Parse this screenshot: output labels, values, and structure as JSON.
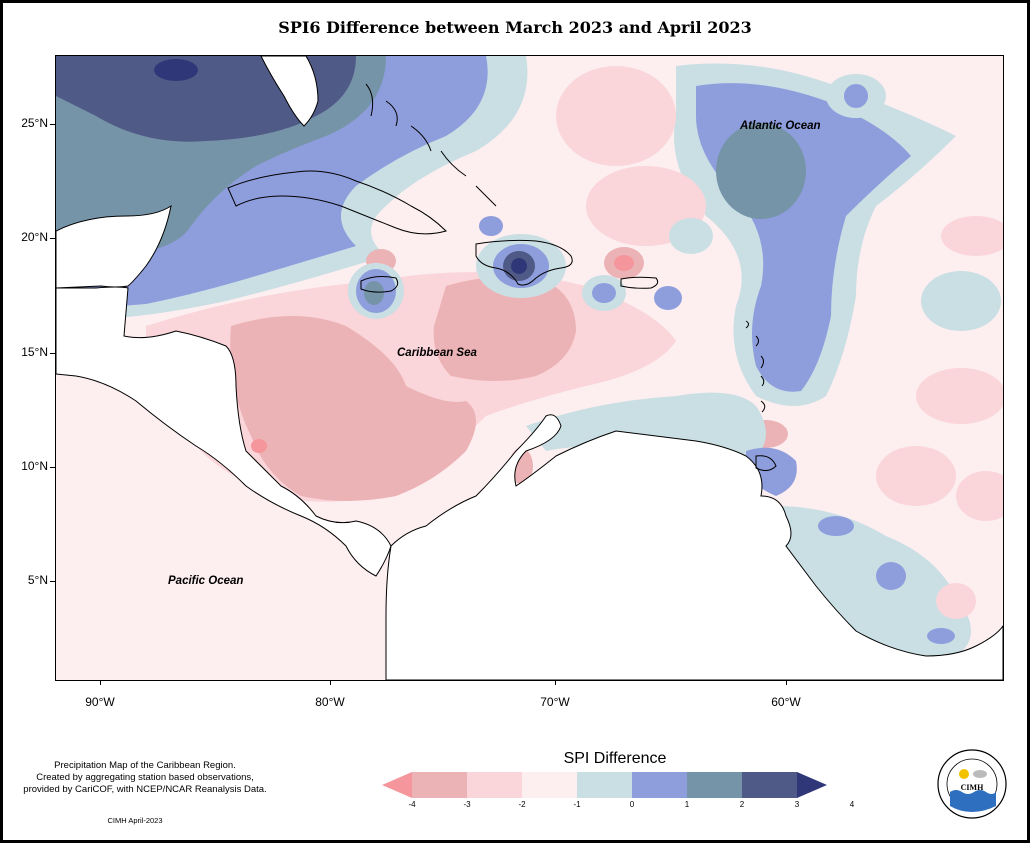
{
  "title": "SPI6 Difference between March 2023 and April 2023",
  "map": {
    "labels": {
      "atlantic": "Atlantic Ocean",
      "caribbean": "Caribbean Sea",
      "pacific": "Pacific Ocean"
    },
    "lat_ticks": [
      "25°N",
      "20°N",
      "15°N",
      "10°N",
      "5°N"
    ],
    "lon_ticks": [
      "90°W",
      "80°W",
      "70°W",
      "60°W"
    ],
    "extent": {
      "lon_min": -91.8,
      "lon_max": -50.8,
      "lat_min": 0.9,
      "lat_max": 28.0
    }
  },
  "legend": {
    "title": "SPI Difference",
    "ticks": [
      "-4",
      "-3",
      "-2",
      "-1",
      "0",
      "1",
      "2",
      "3",
      "4"
    ],
    "colors": [
      "#f4969c",
      "#ecb3b6",
      "#fad5da",
      "#fdeef0",
      "#c9dfe4",
      "#8e9edd",
      "#7694a8",
      "#505a86",
      "#303779"
    ]
  },
  "credit": {
    "line1": "Precipitation Map of the Caribbean Region.",
    "line2": "Created by aggregating station based observations,",
    "line3": "provided by CariCOF, with NCEP/NCAR Reanalysis Data.",
    "short": "CIMH April-2023"
  },
  "logo": {
    "text": "CIMH",
    "ring_text": "Caribbean Institute for Meteorology and Hydrology"
  }
}
